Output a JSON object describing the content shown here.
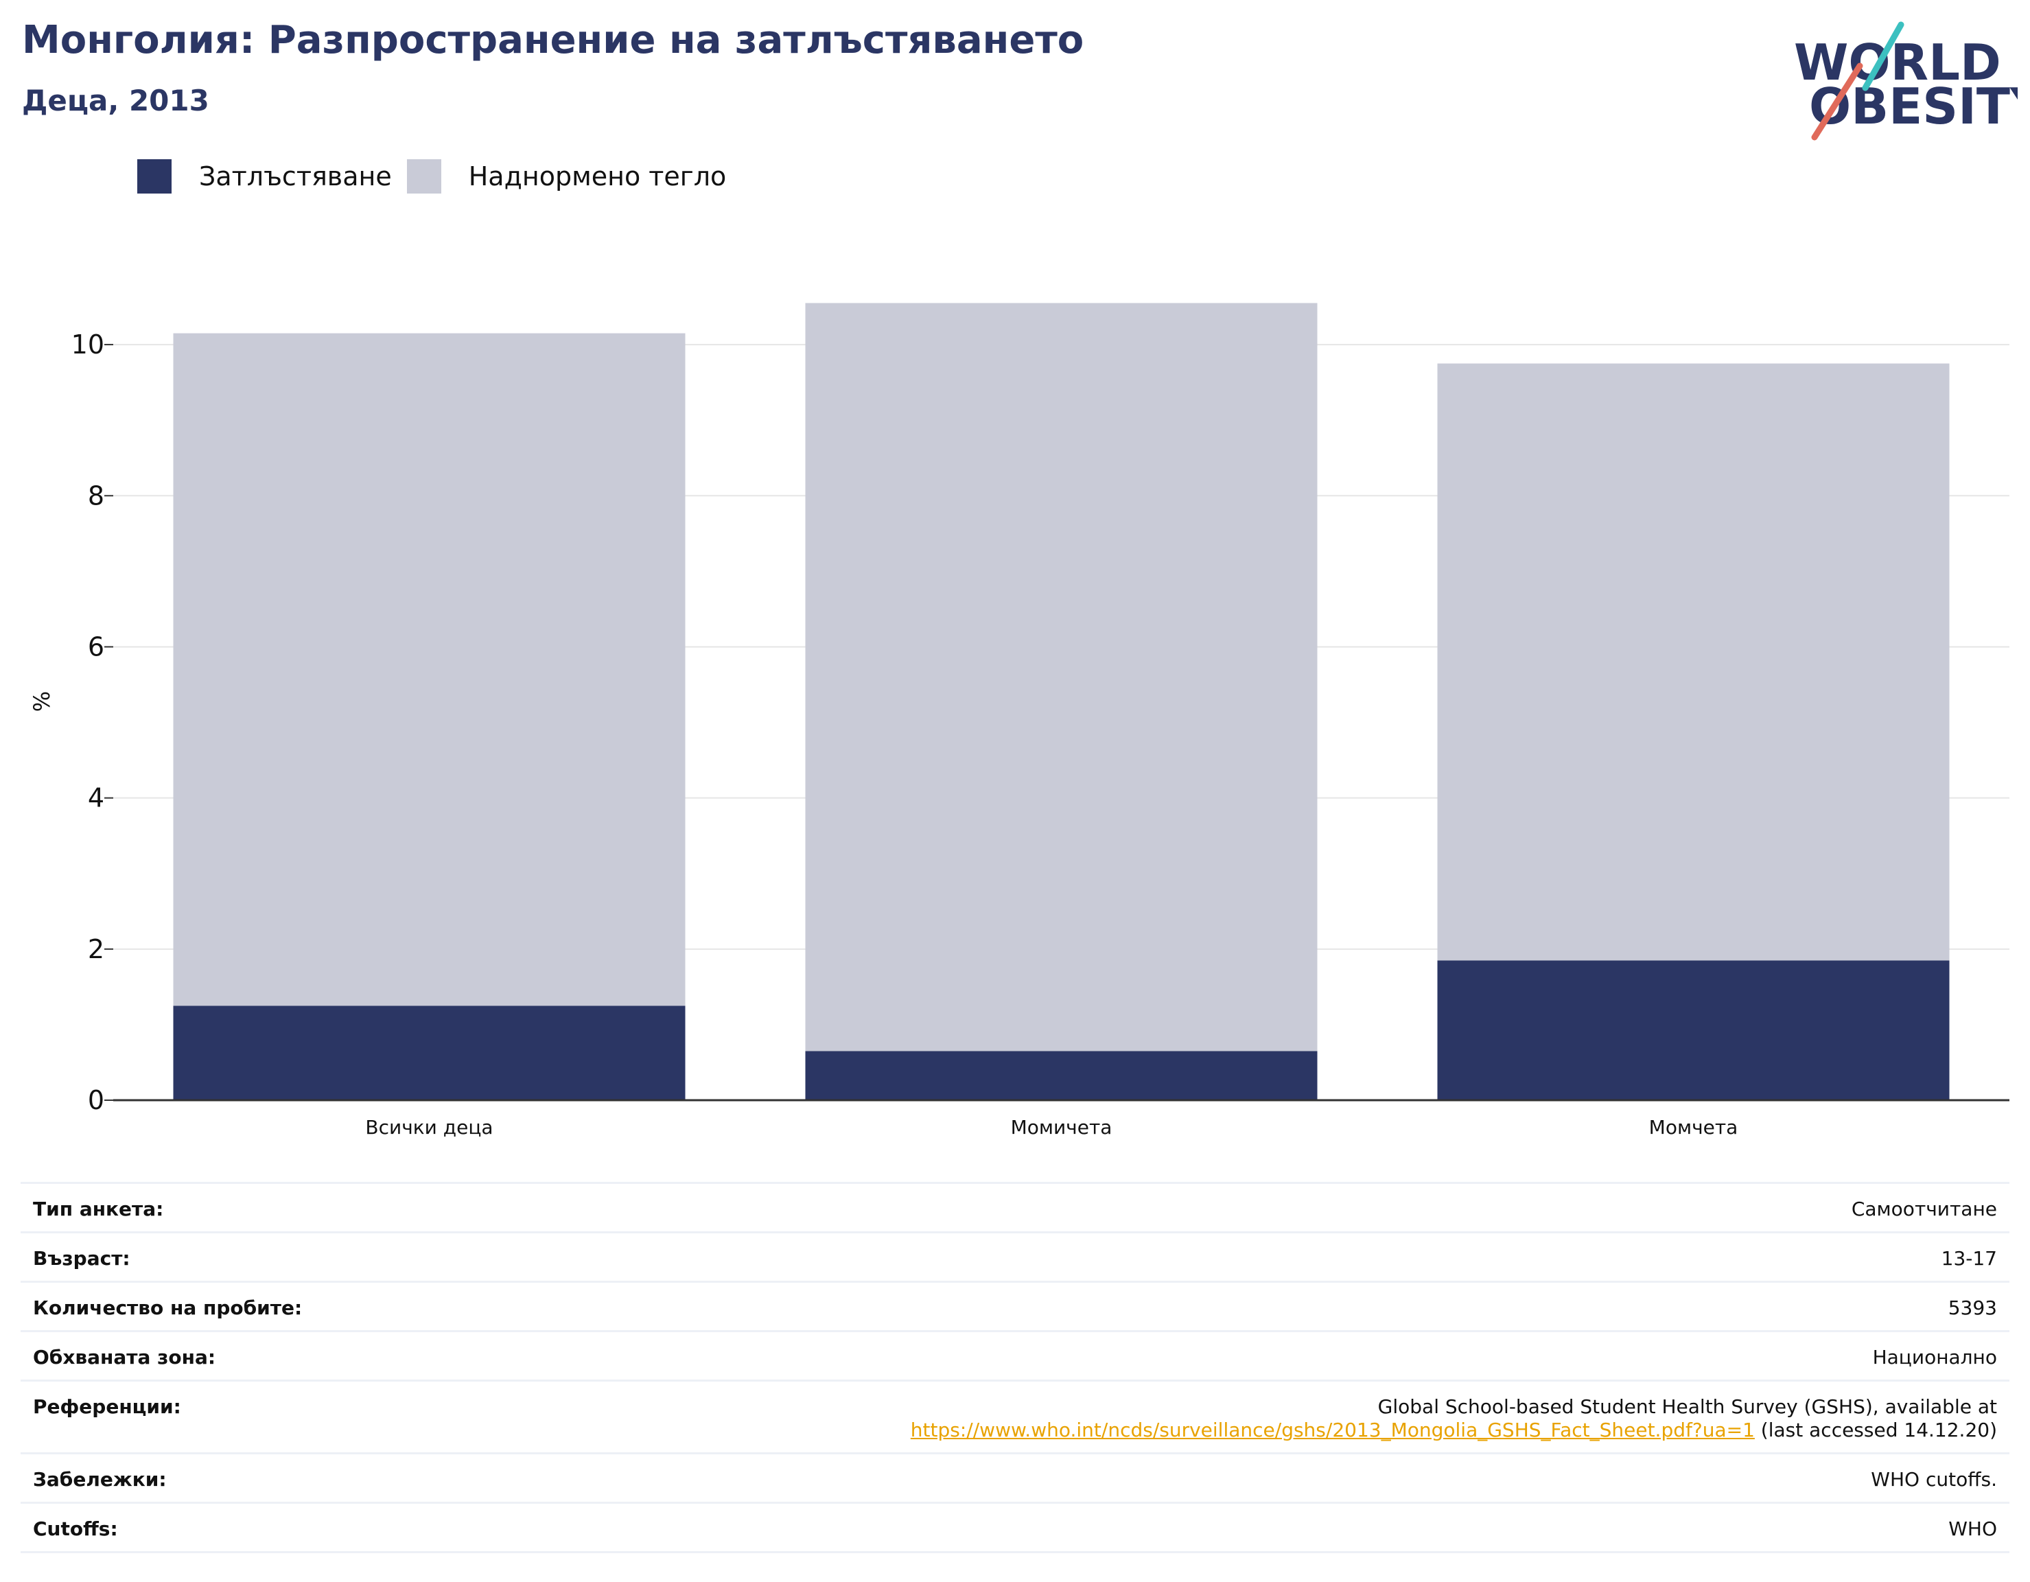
{
  "header": {
    "title": "Монголия: Разпространение на затлъстяването",
    "subtitle": "Деца, 2013"
  },
  "logo": {
    "line1": "WORLD",
    "line2": "OBESITY",
    "icon": "world-obesity-logo"
  },
  "colors": {
    "obesity": "#2b3664",
    "overweight": "#c9cbd7",
    "accent_teal": "#3cc0c0",
    "accent_coral": "#e06a5a",
    "link": "#e8a200"
  },
  "chart_data": {
    "type": "bar",
    "stacked": true,
    "categories": [
      "Всички деца",
      "Момичета",
      "Момчета"
    ],
    "series": [
      {
        "name": "Затлъстяване",
        "values": [
          1.25,
          0.65,
          1.85
        ]
      },
      {
        "name": "Наднормено тегло",
        "values": [
          8.9,
          9.9,
          7.9
        ]
      }
    ],
    "ylabel": "%",
    "ylim": [
      0,
      11
    ],
    "yticks": [
      0,
      2,
      4,
      6,
      8,
      10
    ],
    "grid": true,
    "legend": "top-left"
  },
  "meta": [
    {
      "label": "Тип анкета:",
      "value": "Самоотчитане"
    },
    {
      "label": "Възраст:",
      "value": "13-17"
    },
    {
      "label": "Количество на пробите:",
      "value": "5393"
    },
    {
      "label": "Обхваната зона:",
      "value": "Национално"
    },
    {
      "label": "Референции:",
      "value": "Global School-based Student Health Survey (GSHS), available at",
      "link": "https://www.who.int/ncds/surveillance/gshs/2013_Mongolia_GSHS_Fact_Sheet.pdf?ua=1",
      "suffix": " (last accessed 14.12.20)"
    },
    {
      "label": "Забележки:",
      "value": "WHO cutoffs."
    },
    {
      "label": "Cutoffs:",
      "value": "WHO"
    }
  ]
}
